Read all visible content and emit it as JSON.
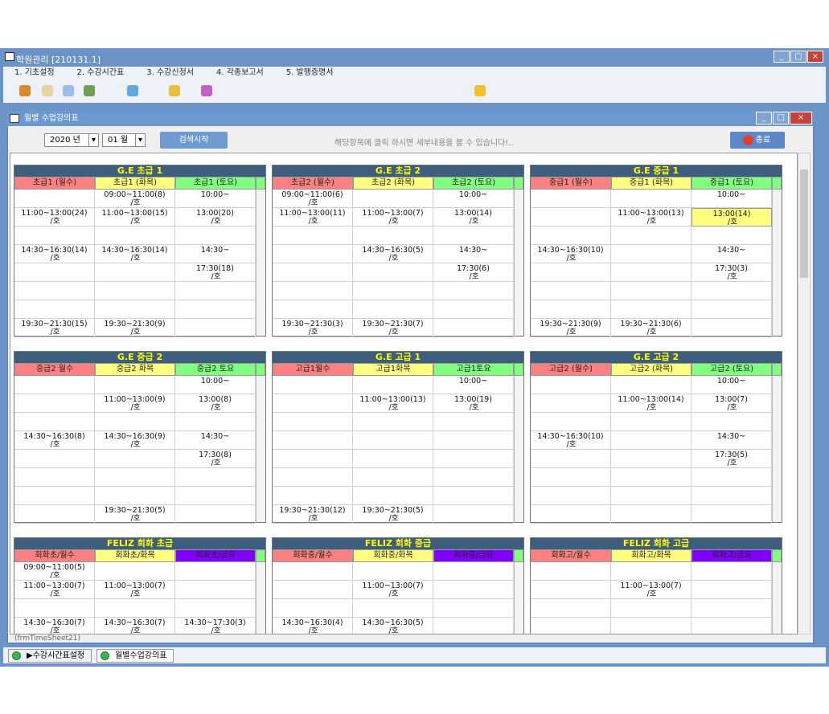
{
  "window": {
    "title": "학원관리 [210131.1]",
    "menu": [
      "1. 기초설정",
      "2. 수강시간표",
      "3. 수강신청서",
      "4. 각종보고서",
      "5. 발행증명서"
    ]
  },
  "child": {
    "title": "월별 수업강의표",
    "year": "2020",
    "year_unit": "년",
    "month": "01",
    "month_unit": "월",
    "search_button": "검색시작",
    "hint": "해당항목에 클릭 하시면 세부내용을 볼 수 있습니다!..",
    "close_button": "종료"
  },
  "panels": [
    {
      "title": "G.E 초급 1",
      "headers": [
        "초급1 (월수)",
        "초급1 (화목)",
        "초급1 (토요)"
      ],
      "header_colors": [
        "#ff8080",
        "#ffff80",
        "#80ff80"
      ],
      "rows": [
        [
          null,
          [
            "09:00~11:00(8)",
            "/호"
          ],
          [
            "10:00~"
          ]
        ],
        [
          [
            "11:00~13:00(24)",
            "/호"
          ],
          [
            "11:00~13:00(15)",
            "/호"
          ],
          [
            "13:00(20)",
            "/호"
          ]
        ],
        [
          null,
          null,
          null
        ],
        [
          [
            "14:30~16:30(14)",
            "/호"
          ],
          [
            "14:30~16:30(14)",
            "/호"
          ],
          [
            "14:30~"
          ]
        ],
        [
          null,
          null,
          [
            "17:30(18)",
            "/호"
          ]
        ],
        [
          null,
          null,
          null
        ],
        [
          null,
          null,
          null
        ],
        [
          [
            "19:30~21:30(15)",
            "/호"
          ],
          [
            "19:30~21:30(9)",
            "/호"
          ],
          null
        ]
      ]
    },
    {
      "title": "G.E 초급 2",
      "headers": [
        "초급2 (월수)",
        "초급2 (화목)",
        "초급2 (토요)"
      ],
      "header_colors": [
        "#ff8080",
        "#ffff80",
        "#80ff80"
      ],
      "rows": [
        [
          [
            "09:00~11:00(6)",
            "/호"
          ],
          null,
          [
            "10:00~"
          ]
        ],
        [
          [
            "11:00~13:00(11)",
            "/호"
          ],
          [
            "11:00~13:00(7)",
            "/호"
          ],
          [
            "13:00(14)",
            "/호"
          ]
        ],
        [
          null,
          null,
          null
        ],
        [
          null,
          [
            "14:30~16:30(5)",
            "/호"
          ],
          [
            "14:30~"
          ]
        ],
        [
          null,
          null,
          [
            "17:30(6)",
            "/호"
          ]
        ],
        [
          null,
          null,
          null
        ],
        [
          null,
          null,
          null
        ],
        [
          [
            "19:30~21:30(3)",
            "/호"
          ],
          [
            "19:30~21:30(7)",
            "/호"
          ],
          null
        ]
      ]
    },
    {
      "title": "G.E 중급 1",
      "headers": [
        "중급1 (월수)",
        "중급1 (화목)",
        "중급1 (토요)"
      ],
      "header_colors": [
        "#ff8080",
        "#ffff80",
        "#80ff80"
      ],
      "rows": [
        [
          null,
          null,
          [
            "10:00~"
          ]
        ],
        [
          null,
          [
            "11:00~13:00(13)",
            "/호"
          ],
          [
            "13:00(14)",
            "/호"
          ]
        ],
        [
          null,
          null,
          null
        ],
        [
          [
            "14:30~16:30(10)",
            "/호"
          ],
          null,
          [
            "14:30~"
          ]
        ],
        [
          null,
          null,
          [
            "17:30(3)",
            "/호"
          ]
        ],
        [
          null,
          null,
          null
        ],
        [
          null,
          null,
          null
        ],
        [
          [
            "19:30~21:30(9)",
            "/호"
          ],
          [
            "19:30~21:30(6)",
            "/호"
          ],
          null
        ]
      ]
    },
    {
      "title": "G.E 중급 2",
      "headers": [
        "중급2 월수",
        "중급2 화목",
        "중급2 토요"
      ],
      "header_colors": [
        "#ff8080",
        "#ffff80",
        "#80ff80"
      ],
      "rows": [
        [
          null,
          null,
          [
            "10:00~"
          ]
        ],
        [
          null,
          [
            "11:00~13:00(9)",
            "/호"
          ],
          [
            "13:00(8)",
            "/호"
          ]
        ],
        [
          null,
          null,
          null
        ],
        [
          [
            "14:30~16:30(8)",
            "/호"
          ],
          [
            "14:30~16:30(9)",
            "/호"
          ],
          [
            "14:30~"
          ]
        ],
        [
          null,
          null,
          [
            "17:30(8)",
            "/호"
          ]
        ],
        [
          null,
          null,
          null
        ],
        [
          null,
          null,
          null
        ],
        [
          null,
          [
            "19:30~21:30(5)",
            "/호"
          ],
          null
        ]
      ]
    },
    {
      "title": "G.E 고급 1",
      "headers": [
        "고급1월수",
        "고급1화목",
        "고급1토요"
      ],
      "header_colors": [
        "#ff8080",
        "#ffff80",
        "#80ff80"
      ],
      "rows": [
        [
          null,
          null,
          [
            "10:00~"
          ]
        ],
        [
          null,
          [
            "11:00~13:00(13)",
            "/호"
          ],
          [
            "13:00(19)",
            "/호"
          ]
        ],
        [
          null,
          null,
          null
        ],
        [
          null,
          null,
          null
        ],
        [
          null,
          null,
          null
        ],
        [
          null,
          null,
          null
        ],
        [
          null,
          null,
          null
        ],
        [
          [
            "19:30~21:30(12)",
            "/호"
          ],
          [
            "19:30~21:30(5)",
            "/호"
          ],
          null
        ]
      ]
    },
    {
      "title": "G.E 고급 2",
      "headers": [
        "고급2 (월수)",
        "고급2 (화목)",
        "고급2 (토요)"
      ],
      "header_colors": [
        "#ff8080",
        "#ffff80",
        "#80ff80"
      ],
      "rows": [
        [
          null,
          null,
          [
            "10:00~"
          ]
        ],
        [
          null,
          [
            "11:00~13:00(14)",
            "/호"
          ],
          [
            "13:00(7)",
            "/호"
          ]
        ],
        [
          null,
          null,
          null
        ],
        [
          [
            "14:30~16:30(10)",
            "/호"
          ],
          null,
          [
            "14:30~"
          ]
        ],
        [
          null,
          null,
          [
            "17:30(5)",
            "/호"
          ]
        ],
        [
          null,
          null,
          null
        ],
        [
          null,
          null,
          null
        ],
        [
          null,
          null,
          null
        ]
      ]
    },
    {
      "title": "FELIZ 회화 초급",
      "headers": [
        "회화초/월수",
        "회화초/화목",
        "회화초/금요"
      ],
      "header_colors": [
        "#ff8080",
        "#ffff80",
        "#8000ff"
      ],
      "rows": [
        [
          [
            "09:00~11:00(5)",
            "/호"
          ],
          null,
          null
        ],
        [
          [
            "11:00~13:00(7)",
            "/호"
          ],
          [
            "11:00~13:00(7)",
            "/호"
          ],
          null
        ],
        [
          null,
          null,
          null
        ],
        [
          [
            "14:30~16:30(7)",
            "/호"
          ],
          [
            "14:30~16:30(7)",
            "/호"
          ],
          [
            "14:30~17:30(3)",
            "/호"
          ]
        ]
      ]
    },
    {
      "title": "FELIZ 회화 중급",
      "headers": [
        "회화중/월수",
        "회화중/화목",
        "회화중/금요"
      ],
      "header_colors": [
        "#ff8080",
        "#ffff80",
        "#8000ff"
      ],
      "rows": [
        [
          null,
          null,
          null
        ],
        [
          null,
          [
            "11:00~13:00(7)",
            "/호"
          ],
          null
        ],
        [
          null,
          null,
          null
        ],
        [
          [
            "14:30~16:30(4)",
            "/호"
          ],
          [
            "14:30~16:30(5)",
            "/호"
          ],
          null
        ]
      ]
    },
    {
      "title": "FELIZ 회화 고급",
      "headers": [
        "회화고/월수",
        "회화고/화목",
        "회화고/금요"
      ],
      "header_colors": [
        "#ff8080",
        "#ffff80",
        "#8000ff"
      ],
      "rows": [
        [
          null,
          null,
          null
        ],
        [
          null,
          [
            "11:00~13:00(7)",
            "/호"
          ],
          null
        ],
        [
          null,
          null,
          null
        ],
        [
          null,
          null,
          null
        ]
      ]
    }
  ],
  "status": "(frmTimeSheet21)",
  "tabs": [
    "▶수강시간표설정",
    "월별수업강의표"
  ]
}
